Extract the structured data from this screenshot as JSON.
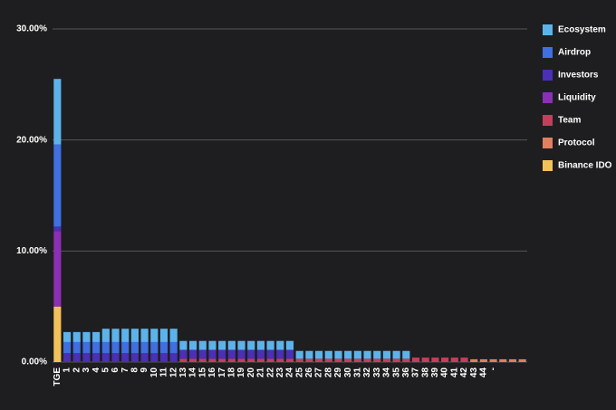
{
  "chart_data": {
    "type": "stacked_bar",
    "categories": [
      "TGE",
      "1",
      "2",
      "3",
      "4",
      "5",
      "6",
      "7",
      "8",
      "9",
      "10",
      "11",
      "12",
      "13",
      "14",
      "15",
      "16",
      "17",
      "18",
      "19",
      "20",
      "21",
      "22",
      "23",
      "24",
      "25",
      "26",
      "27",
      "28",
      "29",
      "30",
      "31",
      "32",
      "33",
      "34",
      "35",
      "36",
      "37",
      "38",
      "39",
      "40",
      "41",
      "42",
      "43",
      "44",
      "-",
      null,
      null,
      null
    ],
    "series": [
      {
        "name": "Binance IDO",
        "color": "#f2c25a",
        "values": [
          5,
          0,
          0,
          0,
          0,
          0,
          0,
          0,
          0,
          0,
          0,
          0,
          0,
          0,
          0,
          0,
          0,
          0,
          0,
          0,
          0,
          0,
          0,
          0,
          0,
          0,
          0,
          0,
          0,
          0,
          0,
          0,
          0,
          0,
          0,
          0,
          0,
          0,
          0,
          0,
          0,
          0,
          0,
          0,
          0,
          0,
          0,
          0,
          0
        ]
      },
      {
        "name": "Protocol",
        "color": "#e0805e",
        "values": [
          0,
          0,
          0,
          0,
          0,
          0,
          0,
          0,
          0,
          0,
          0,
          0,
          0,
          0,
          0,
          0,
          0,
          0,
          0,
          0,
          0,
          0,
          0,
          0,
          0,
          0,
          0,
          0,
          0,
          0,
          0,
          0,
          0,
          0,
          0,
          0,
          0,
          0,
          0,
          0,
          0,
          0,
          0,
          0.25,
          0.25,
          0.25,
          0.25,
          0.25,
          0.25
        ]
      },
      {
        "name": "Team",
        "color": "#c33f5c",
        "values": [
          0,
          0,
          0,
          0,
          0,
          0,
          0,
          0,
          0,
          0,
          0,
          0,
          0,
          0.3,
          0.3,
          0.3,
          0.3,
          0.3,
          0.3,
          0.3,
          0.3,
          0.3,
          0.3,
          0.3,
          0.3,
          0.3,
          0.3,
          0.3,
          0.3,
          0.3,
          0.3,
          0.3,
          0.3,
          0.3,
          0.3,
          0.3,
          0.3,
          0.4,
          0.4,
          0.4,
          0.4,
          0.4,
          0.4,
          0,
          0,
          0,
          0,
          0,
          0
        ]
      },
      {
        "name": "Liquidity",
        "color": "#8b2fb5",
        "values": [
          6.8,
          0,
          0,
          0,
          0,
          0,
          0,
          0,
          0,
          0,
          0,
          0,
          0,
          0,
          0,
          0,
          0,
          0,
          0,
          0,
          0,
          0,
          0,
          0,
          0,
          0,
          0,
          0,
          0,
          0,
          0,
          0,
          0,
          0,
          0,
          0,
          0,
          0,
          0,
          0,
          0,
          0,
          0,
          0,
          0,
          0,
          0,
          0,
          0
        ]
      },
      {
        "name": "Investors",
        "color": "#4b2fb4",
        "values": [
          0.4,
          0.8,
          0.8,
          0.8,
          0.8,
          0.8,
          0.8,
          0.8,
          0.8,
          0.8,
          0.8,
          0.8,
          0.8,
          0.8,
          0.8,
          0.8,
          0.8,
          0.8,
          0.8,
          0.8,
          0.8,
          0.8,
          0.8,
          0.8,
          0.8,
          0,
          0,
          0,
          0,
          0,
          0,
          0,
          0,
          0,
          0,
          0,
          0,
          0,
          0,
          0,
          0,
          0,
          0,
          0,
          0,
          0,
          0,
          0,
          0
        ]
      },
      {
        "name": "Airdrop",
        "color": "#3f6fe0",
        "values": [
          7.4,
          1.0,
          1.0,
          1.0,
          1.0,
          1.0,
          1.0,
          1.0,
          1.0,
          1.0,
          1.0,
          1.0,
          1.0,
          0,
          0,
          0,
          0,
          0,
          0,
          0,
          0,
          0,
          0,
          0,
          0,
          0,
          0,
          0,
          0,
          0,
          0,
          0,
          0,
          0,
          0,
          0,
          0,
          0,
          0,
          0,
          0,
          0,
          0,
          0,
          0,
          0,
          0,
          0,
          0
        ]
      },
      {
        "name": "Ecosystem",
        "color": "#5cb3ea",
        "values": [
          5.9,
          0.9,
          0.9,
          0.9,
          0.9,
          1.2,
          1.2,
          1.2,
          1.2,
          1.2,
          1.2,
          1.2,
          1.2,
          0.8,
          0.8,
          0.8,
          0.8,
          0.8,
          0.8,
          0.8,
          0.8,
          0.8,
          0.8,
          0.8,
          0.8,
          0.7,
          0.7,
          0.7,
          0.7,
          0.7,
          0.7,
          0.7,
          0.7,
          0.7,
          0.7,
          0.7,
          0.7,
          0,
          0,
          0,
          0,
          0,
          0,
          0,
          0,
          0,
          0,
          0,
          0
        ]
      }
    ],
    "legend_order": [
      "Ecosystem",
      "Airdrop",
      "Investors",
      "Liquidity",
      "Team",
      "Protocol",
      "Binance IDO"
    ],
    "ylim": [
      0,
      30
    ],
    "yticks": [
      {
        "value": 0,
        "label": "0.00%"
      },
      {
        "value": 10,
        "label": "10.00%"
      },
      {
        "value": 20,
        "label": "20.00%"
      },
      {
        "value": 30,
        "label": "30.00%"
      }
    ],
    "grid": true,
    "legend": "right"
  }
}
